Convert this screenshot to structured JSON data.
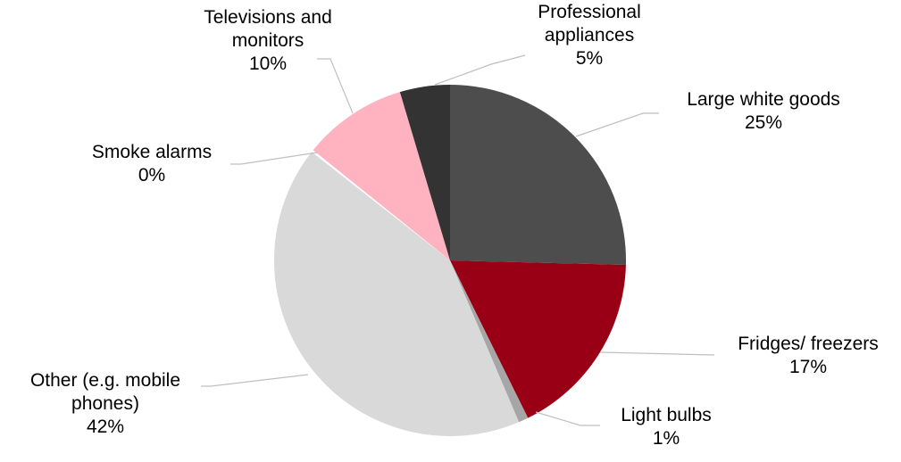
{
  "chart_data": {
    "type": "pie",
    "title": "",
    "start_angle_deg": 0,
    "direction": "clockwise",
    "series": [
      {
        "values": [
          {
            "label": "Large white goods",
            "value": 25.4,
            "display": "25%",
            "color": "#4d4d4d",
            "label_lines": [
              "Large white goods",
              "25%"
            ]
          },
          {
            "label": "Fridges/ freezers",
            "value": 17.3,
            "display": "17%",
            "color": "#990015",
            "label_lines": [
              "Fridges/ freezers",
              "17%"
            ]
          },
          {
            "label": "Light bulbs",
            "value": 0.9,
            "display": "1%",
            "color": "#a6a6a6",
            "label_lines": [
              "Light bulbs",
              "1%"
            ]
          },
          {
            "label": "Other (e.g. mobile phones)",
            "value": 42.0,
            "display": "42%",
            "color": "#d9d9d9",
            "label_lines": [
              "Other (e.g. mobile",
              "phones)",
              "42%"
            ]
          },
          {
            "label": "Smoke alarms",
            "value": 0.2,
            "display": "0%",
            "color": "#ffffff",
            "label_lines": [
              "Smoke alarms",
              "0%"
            ]
          },
          {
            "label": "Televisions and monitors",
            "value": 9.6,
            "display": "10%",
            "color": "#ffb3c1",
            "label_lines": [
              "Televisions and",
              "monitors",
              "10%"
            ]
          },
          {
            "label": "Professional appliances",
            "value": 4.6,
            "display": "5%",
            "color": "#333333",
            "label_lines": [
              "Professional",
              "appliances",
              "5%"
            ]
          }
        ]
      }
    ]
  }
}
